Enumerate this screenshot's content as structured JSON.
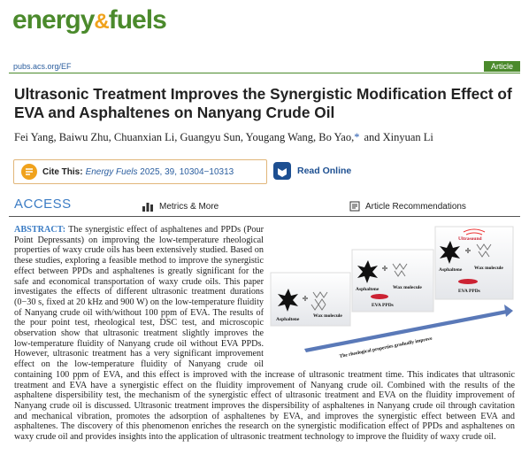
{
  "header": {
    "logo": [
      "energy",
      "&",
      "fuels"
    ],
    "url": "pubs.acs.org/EF",
    "article_type": "Article"
  },
  "title": "Ultrasonic Treatment Improves the Synergistic Modification Effect of EVA and Asphaltenes on Nanyang Crude Oil",
  "authors": [
    "Fei Yang, Baiwu Zhu, Chuanxian Li, Guangyu Sun, Yougang Wang, Bo Yao,",
    "*",
    "and Xinyuan Li"
  ],
  "cite": {
    "label": "Cite This:",
    "journal": "Energy Fuels",
    "details": "2025, 39, 10304−10313"
  },
  "read_online": "Read Online",
  "access": {
    "label": "ACCESS",
    "metrics": "Metrics & More",
    "recommendations": "Article Recommendations"
  },
  "abstract": {
    "label": "ABSTRACT:",
    "text": "The synergistic effect of asphaltenes and PPDs (Pour Point Depressants) on improving the low-temperature rheological properties of waxy crude oils has been extensively studied. Based on these studies, exploring a feasible method to improve the synergistic effect between PPDs and asphaltenes is greatly significant for the safe and economical transportation of waxy crude oils. This paper investigates the effects of different ultrasonic treatment durations (0−30 s, fixed at 20 kHz and 900 W) on the low-temperature fluidity of Nanyang crude oil with/without 100 ppm of EVA. The results of the pour point test, rheological test, DSC test, and microscopic observation show that ultrasonic treatment slightly improves the low-temperature fluidity of Nanyang crude oil without EVA PPDs. However, ultrasonic treatment has a very significant improvement effect on the low-temperature fluidity of Nanyang crude oil containing 100 ppm of EVA, and this effect is improved with the increase of ultrasonic treatment time. This indicates that ultrasonic treatment and EVA have a synergistic effect on the fluidity improvement of Nanyang crude oil. Combined with the results of the asphaltene dispersibility test, the mechanism of the synergistic effect of ultrasonic treatment and EVA on the fluidity improvement of Nanyang crude oil is discussed. Ultrasonic treatment improves the dispersibility of asphaltenes in Nanyang crude oil through cavitation and mechanical vibration, promotes the adsorption of asphaltenes by EVA, and improves the synergistic effect between EVA and asphaltenes. The discovery of this phenomenon enriches the research on the synergistic modification effect of PPDs and asphaltenes on waxy crude oil and provides insights into the application of ultrasonic treatment technology to improve the fluidity of waxy crude oil."
  },
  "graphic": {
    "panels": [
      {
        "labels": [
          "Asphaltene",
          "Wax molecule"
        ]
      },
      {
        "labels": [
          "Asphaltene",
          "Wax molecule",
          "EVA PPDs"
        ]
      },
      {
        "labels": [
          "Ultrasound",
          "Asphaltene",
          "Wax molecule",
          "EVA PPDs"
        ]
      }
    ],
    "arrow_label": "The rheological properties gradually improve"
  }
}
